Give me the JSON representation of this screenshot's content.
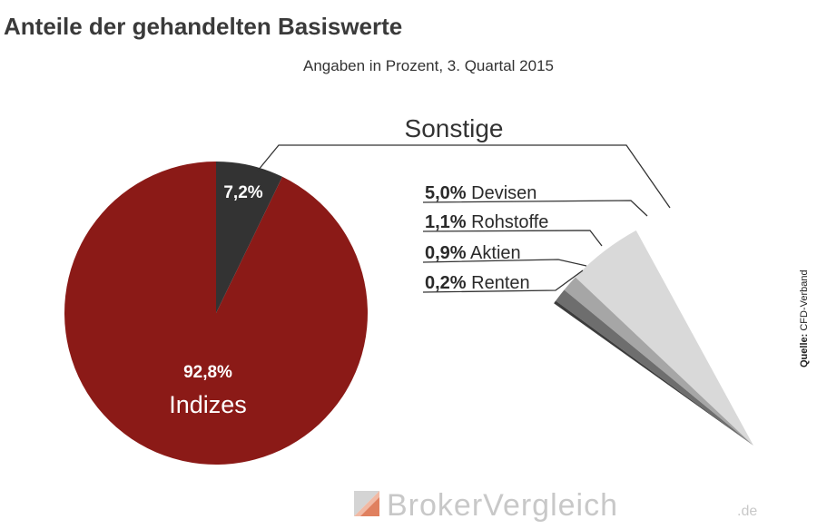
{
  "header": {
    "title": "Anteile der gehandelten Basiswerte",
    "subtitle": "Angaben in Prozent, 3. Quartal 2015"
  },
  "chart_data": {
    "type": "pie",
    "title": "Anteile der gehandelten Basiswerte",
    "subtitle": "Angaben in Prozent, 3. Quartal 2015",
    "slices": [
      {
        "name": "Indizes",
        "value": 92.8,
        "label": "92,8%",
        "color": "#8b1a17"
      },
      {
        "name": "",
        "value": 7.2,
        "label": "7,2%",
        "color": "#333333"
      }
    ],
    "breakdown": {
      "group_label": "Sonstige",
      "items": [
        {
          "name": "Devisen",
          "value": 5.0,
          "label": "5,0%",
          "color": "#d9d9d9"
        },
        {
          "name": "Rohstoffe",
          "value": 1.1,
          "label": "1,1%",
          "color": "#a6a6a6"
        },
        {
          "name": "Aktien",
          "value": 0.9,
          "label": "0,9%",
          "color": "#6e6e6e"
        },
        {
          "name": "Renten",
          "value": 0.2,
          "label": "0,2%",
          "color": "#3c3c3c"
        }
      ]
    }
  },
  "source": {
    "prefix": "Quelle:",
    "name": "CFD-Verband"
  },
  "brand": {
    "main": "BrokerVergleich",
    "tld": ".de",
    "colors": [
      "#d4d4d4",
      "#f1b9a4",
      "#e0805f"
    ]
  }
}
